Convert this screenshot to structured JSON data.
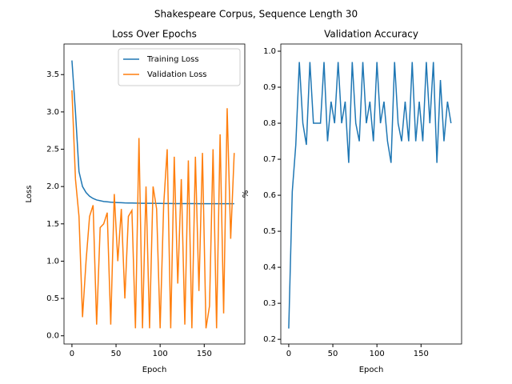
{
  "title": "Shakespeare Corpus, Sequence Length 30",
  "chart_data": [
    {
      "type": "line",
      "title": "Loss Over Epochs",
      "x_label": "Epoch",
      "y_label": "Loss",
      "x": [
        0,
        4,
        8,
        12,
        16,
        20,
        24,
        28,
        32,
        36,
        40,
        44,
        48,
        52,
        56,
        60,
        64,
        68,
        72,
        76,
        80,
        84,
        88,
        92,
        96,
        100,
        104,
        108,
        112,
        116,
        120,
        124,
        128,
        132,
        136,
        140,
        144,
        148,
        152,
        156,
        160,
        164,
        168,
        172,
        176,
        180,
        184
      ],
      "series": [
        {
          "name": "Training Loss",
          "color": "#1f77b4",
          "values": [
            3.69,
            3.0,
            2.2,
            2.0,
            1.92,
            1.87,
            1.84,
            1.82,
            1.81,
            1.8,
            1.795,
            1.79,
            1.787,
            1.785,
            1.783,
            1.781,
            1.78,
            1.779,
            1.778,
            1.777,
            1.776,
            1.776,
            1.775,
            1.775,
            1.774,
            1.774,
            1.773,
            1.773,
            1.773,
            1.772,
            1.772,
            1.772,
            1.771,
            1.771,
            1.771,
            1.771,
            1.77,
            1.77,
            1.77,
            1.77,
            1.77,
            1.77,
            1.77,
            1.77,
            1.77,
            1.77,
            1.77
          ]
        },
        {
          "name": "Validation Loss",
          "color": "#ff7f0e",
          "values": [
            3.29,
            2.1,
            1.6,
            0.25,
            1.0,
            1.6,
            1.75,
            0.15,
            1.45,
            1.5,
            1.65,
            0.15,
            1.9,
            1.0,
            1.7,
            0.5,
            1.6,
            1.68,
            0.1,
            2.65,
            0.1,
            2.0,
            0.1,
            2.0,
            1.7,
            0.1,
            1.75,
            2.5,
            0.1,
            2.4,
            0.7,
            2.1,
            0.15,
            2.35,
            0.1,
            2.4,
            0.6,
            2.45,
            0.1,
            0.4,
            2.5,
            0.1,
            2.7,
            0.3,
            3.05,
            1.3,
            2.45
          ]
        }
      ],
      "xlim": [
        -9,
        196
      ],
      "ylim": [
        -0.11,
        3.91
      ],
      "xticks": [
        0,
        50,
        100,
        150
      ],
      "yticks": [
        {
          "value": 0,
          "label": "0.0"
        },
        0.5,
        {
          "value": 1,
          "label": "1.0"
        },
        1.5,
        {
          "value": 2,
          "label": "2.0"
        },
        2.5,
        {
          "value": 3,
          "label": "3.0"
        },
        3.5
      ],
      "legend": "upper right"
    },
    {
      "type": "line",
      "title": "Validation Accuracy",
      "x_label": "Epoch",
      "y_label": "%",
      "x": [
        0,
        4,
        8,
        12,
        16,
        20,
        24,
        28,
        32,
        36,
        40,
        44,
        48,
        52,
        56,
        60,
        64,
        68,
        72,
        76,
        80,
        84,
        88,
        92,
        96,
        100,
        104,
        108,
        112,
        116,
        120,
        124,
        128,
        132,
        136,
        140,
        144,
        148,
        152,
        156,
        160,
        164,
        168,
        172,
        176,
        180,
        184
      ],
      "series": [
        {
          "name": "Validation Accuracy",
          "color": "#1f77b4",
          "values": [
            0.23,
            0.61,
            0.74,
            0.97,
            0.8,
            0.74,
            0.97,
            0.8,
            0.8,
            0.8,
            0.97,
            0.75,
            0.86,
            0.8,
            0.97,
            0.8,
            0.86,
            0.69,
            0.97,
            0.8,
            0.75,
            0.97,
            0.8,
            0.86,
            0.75,
            0.97,
            0.8,
            0.86,
            0.75,
            0.69,
            0.97,
            0.8,
            0.75,
            0.86,
            0.75,
            0.97,
            0.75,
            0.86,
            0.75,
            0.97,
            0.8,
            0.97,
            0.69,
            0.92,
            0.75,
            0.86,
            0.8
          ]
        }
      ],
      "xlim": [
        -9,
        196
      ],
      "ylim": [
        0.187,
        1.02
      ],
      "xticks": [
        0,
        50,
        100,
        150
      ],
      "yticks": [
        0.2,
        0.3,
        0.4,
        0.5,
        0.6,
        0.7,
        0.8,
        0.9,
        {
          "value": 1,
          "label": "1.0"
        }
      ]
    }
  ]
}
